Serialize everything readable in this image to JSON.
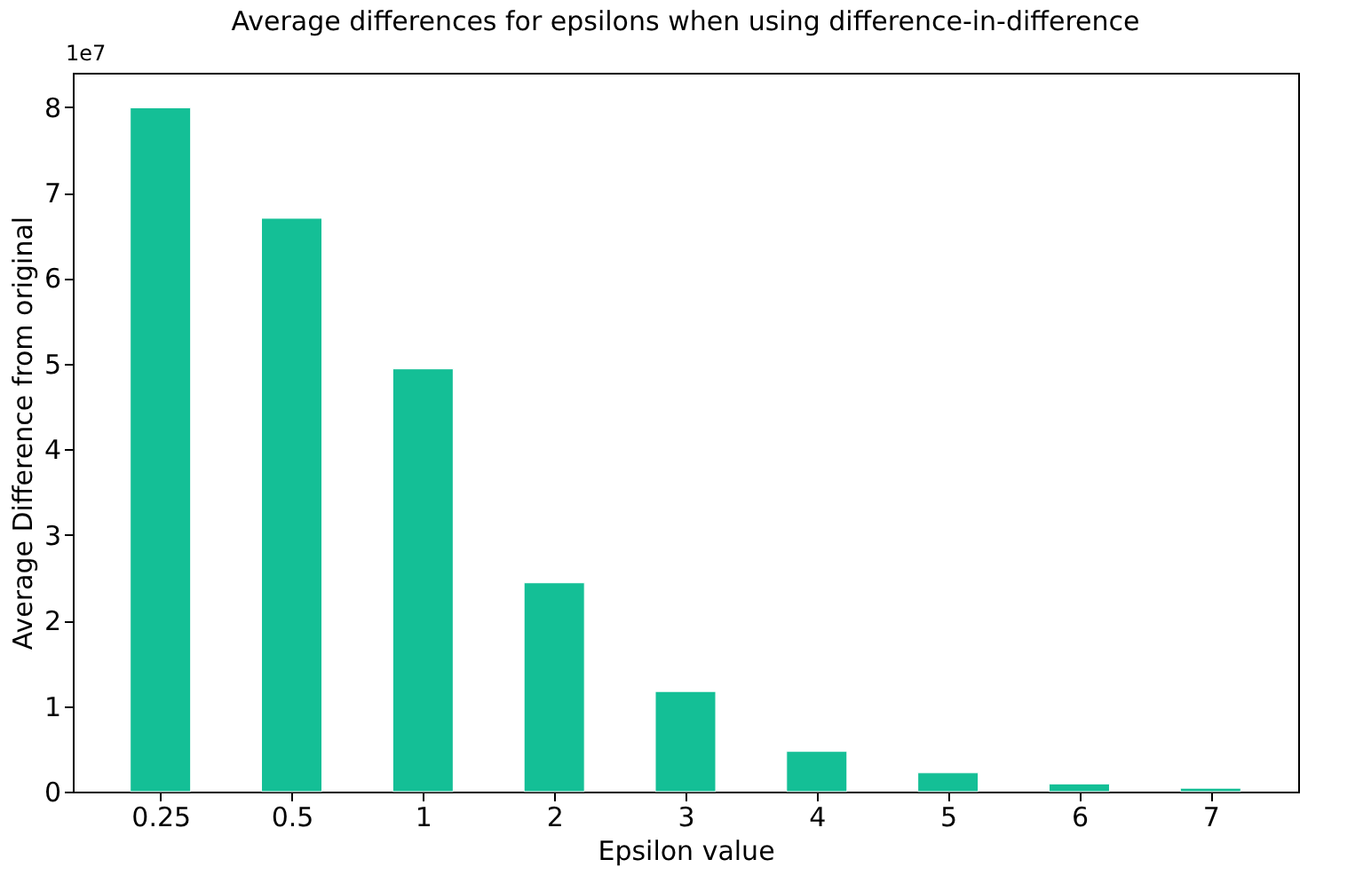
{
  "chart_data": {
    "type": "bar",
    "title": "Average differences for epsilons when using difference-in-difference",
    "xlabel": "Epsilon value",
    "ylabel": "Average Difference from original",
    "categories": [
      "0.25",
      "0.5",
      "1",
      "2",
      "3",
      "4",
      "5",
      "6",
      "7"
    ],
    "series": [
      {
        "color": "#14bf96",
        "values": [
          7.99,
          6.7,
          4.94,
          2.44,
          1.17,
          0.47,
          0.22,
          0.09,
          0.04
        ]
      }
    ],
    "ylim": [
      0,
      8.4
    ],
    "yticks": [
      0,
      1,
      2,
      3,
      4,
      5,
      6,
      7,
      8
    ],
    "grid": false,
    "annotations": [
      "1e7"
    ]
  }
}
